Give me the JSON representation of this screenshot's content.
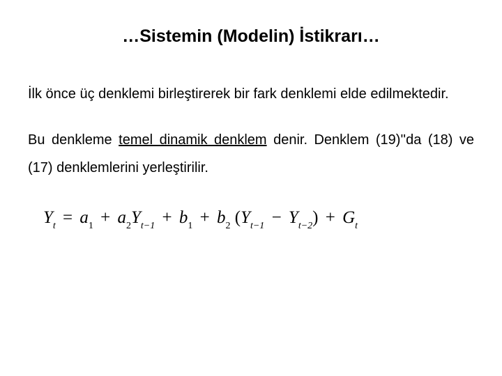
{
  "title": "…Sistemin (Modelin) İstikrarı…",
  "para1_a": "İlk önce üç denklemi birleştirerek bir fark denklemi elde edilmektedir.",
  "para2_a": "Bu denkleme ",
  "para2_underlined": "temel dinamik denklem",
  "para2_b": " denir. Denklem (19)''da  (18) ve (17) denklemlerini yerleştirilir.",
  "eq": {
    "Y": "Y",
    "a": "a",
    "b": "b",
    "G": "G",
    "t": "t",
    "tm1": "t−1",
    "tm2": "t−2",
    "s1": "1",
    "s2": "2",
    "eq": "=",
    "plus": "+",
    "minus": "−",
    "lp": "(",
    "rp": ")"
  },
  "colors": {
    "bg": "#ffffff",
    "text": "#000000"
  },
  "typography": {
    "title_fontsize": 25,
    "body_fontsize": 20,
    "equation_fontsize": 25,
    "equation_font": "Times New Roman"
  }
}
